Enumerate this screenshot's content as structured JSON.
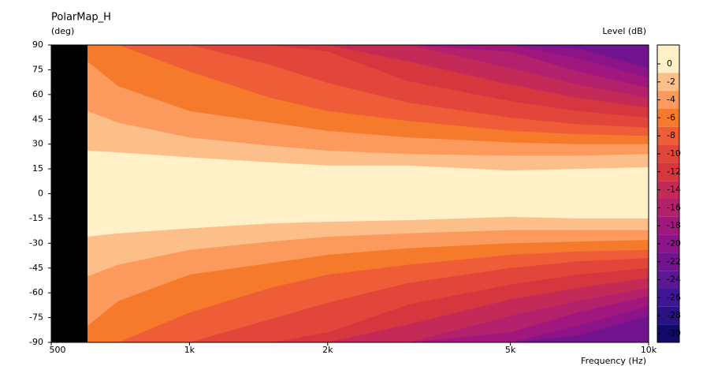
{
  "chart_data": {
    "type": "contour",
    "title": "PolarMap_H",
    "y_label": "(deg)",
    "x_label": "Frequency  (Hz)",
    "colorbar_label": "Level  (dB)",
    "xlim": [
      500,
      10000
    ],
    "log_x": true,
    "xticks": [
      500,
      {
        "value": 1000,
        "label": "1k"
      },
      {
        "value": 2000,
        "label": "2k"
      },
      {
        "value": 5000,
        "label": "5k"
      },
      {
        "value": 10000,
        "label": "10k"
      }
    ],
    "ylim": [
      -90,
      90
    ],
    "yticks": [
      90,
      75,
      60,
      45,
      30,
      15,
      0,
      -15,
      -30,
      -45,
      -60,
      -75,
      -90
    ],
    "levels": [
      0,
      -2,
      -4,
      -6,
      -8,
      -10,
      -12,
      -14,
      -16,
      -18,
      -20,
      -22,
      -24,
      -26,
      -28,
      -30
    ],
    "colors": [
      "#fff0c8",
      "#fdbf8a",
      "#fb9a5c",
      "#f57a2c",
      "#ee5c38",
      "#e2463a",
      "#d6373f",
      "#c42a58",
      "#b3206c",
      "#a0187e",
      "#8c1388",
      "#72138f",
      "#5a1894",
      "#3e1696",
      "#2a1282",
      "#120a6a"
    ],
    "x": [
      600,
      700,
      1000,
      1500,
      2000,
      3000,
      5000,
      7000,
      10000
    ],
    "contours": [
      {
        "level": -2,
        "upper": [
          26,
          25,
          22,
          19,
          17,
          17,
          14,
          15,
          16
        ],
        "lower": [
          -26,
          -24,
          -21,
          -18,
          -17,
          -16,
          -14,
          -15,
          -15
        ]
      },
      {
        "level": -4,
        "upper": [
          50,
          43,
          34,
          29,
          26,
          24,
          23,
          23,
          24
        ],
        "lower": [
          -50,
          -43,
          -34,
          -29,
          -26,
          -24,
          -22,
          -22,
          -22
        ]
      },
      {
        "level": -6,
        "upper": [
          80,
          65,
          50,
          43,
          38,
          34,
          31,
          30,
          30
        ],
        "lower": [
          -80,
          -65,
          -49,
          -42,
          -37,
          -33,
          -30,
          -29,
          -28
        ]
      },
      {
        "level": -8,
        "upper": [
          90,
          90,
          74,
          58,
          50,
          44,
          38,
          36,
          35
        ],
        "lower": [
          -90,
          -90,
          -72,
          -57,
          -49,
          -43,
          -37,
          -35,
          -34
        ]
      },
      {
        "level": -10,
        "upper": [
          90,
          90,
          90,
          78,
          67,
          55,
          46,
          42,
          40
        ],
        "lower": [
          -90,
          -90,
          -90,
          -76,
          -66,
          -54,
          -45,
          -41,
          -39
        ]
      },
      {
        "level": -12,
        "upper": [
          90,
          90,
          90,
          90,
          86,
          68,
          56,
          50,
          46
        ],
        "lower": [
          -90,
          -90,
          -90,
          -90,
          -84,
          -67,
          -55,
          -49,
          -45
        ]
      },
      {
        "level": -14,
        "upper": [
          90,
          90,
          90,
          90,
          90,
          80,
          66,
          58,
          52
        ],
        "lower": [
          -90,
          -90,
          -90,
          -90,
          -90,
          -79,
          -64,
          -57,
          -51
        ]
      },
      {
        "level": -16,
        "upper": [
          90,
          90,
          90,
          90,
          90,
          90,
          76,
          66,
          58
        ],
        "lower": [
          -90,
          -90,
          -90,
          -90,
          -90,
          -90,
          -74,
          -65,
          -57
        ]
      },
      {
        "level": -18,
        "upper": [
          90,
          90,
          90,
          90,
          90,
          90,
          86,
          74,
          64
        ],
        "lower": [
          -90,
          -90,
          -90,
          -90,
          -90,
          -90,
          -84,
          -72,
          -62
        ]
      },
      {
        "level": -20,
        "upper": [
          90,
          90,
          90,
          90,
          90,
          90,
          90,
          82,
          70
        ],
        "lower": [
          -90,
          -90,
          -90,
          -90,
          -90,
          -90,
          -90,
          -80,
          -68
        ]
      },
      {
        "level": -22,
        "upper": [
          90,
          90,
          90,
          90,
          90,
          90,
          90,
          88,
          76
        ],
        "lower": [
          -90,
          -90,
          -90,
          -90,
          -90,
          -90,
          -90,
          -86,
          -74
        ]
      }
    ]
  }
}
